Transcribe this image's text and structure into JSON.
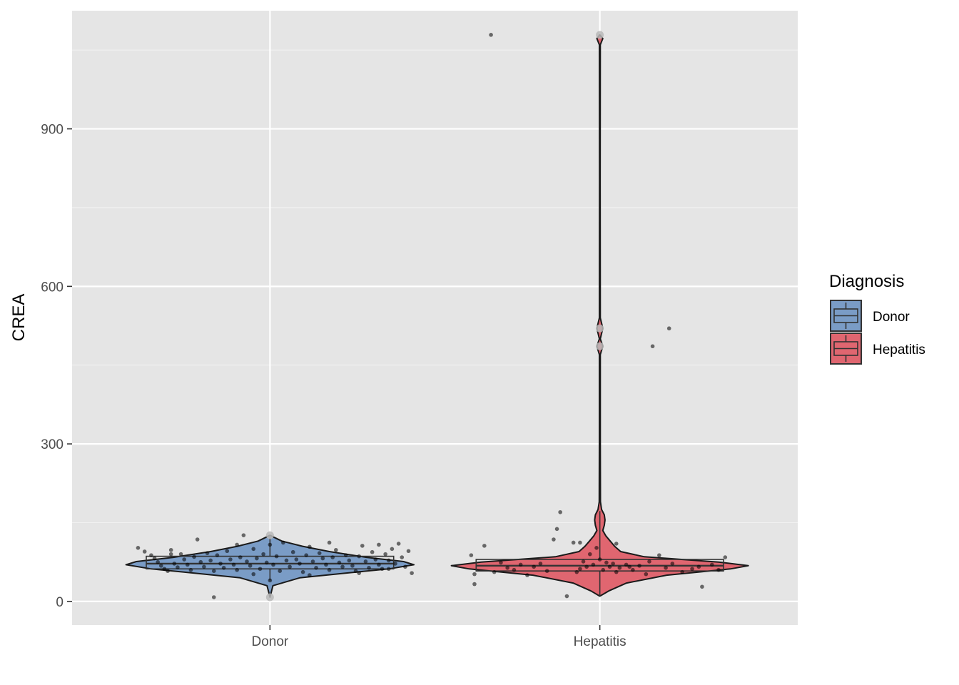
{
  "chart_data": {
    "type": "violin",
    "title": "",
    "xlabel": "",
    "ylabel": "CREA",
    "categories": [
      "Donor",
      "Hepatitis"
    ],
    "ylim": [
      -45,
      1125
    ],
    "yticks": [
      0,
      300,
      600,
      900
    ],
    "grid": true,
    "legend": {
      "title": "Diagnosis",
      "placement": "right",
      "items": [
        {
          "label": "Donor",
          "color": "#7a9cc6"
        },
        {
          "label": "Hepatitis",
          "color": "#e06670"
        }
      ]
    },
    "series": [
      {
        "category": "Donor",
        "color": "#7a9cc6",
        "box": {
          "min": 40,
          "q1": 62,
          "median": 72,
          "q3": 86,
          "max": 122
        },
        "outliers": [
          8,
          126
        ],
        "density": [
          [
            8,
            0.0
          ],
          [
            30,
            0.02
          ],
          [
            45,
            0.2
          ],
          [
            55,
            0.55
          ],
          [
            62,
            0.8
          ],
          [
            70,
            0.97
          ],
          [
            76,
            0.9
          ],
          [
            84,
            0.65
          ],
          [
            95,
            0.4
          ],
          [
            105,
            0.22
          ],
          [
            115,
            0.08
          ],
          [
            126,
            0.0
          ]
        ],
        "points": [
          [
            -0.4,
            102
          ],
          [
            -0.38,
            95
          ],
          [
            -0.36,
            88
          ],
          [
            -0.35,
            82
          ],
          [
            -0.34,
            75
          ],
          [
            -0.33,
            68
          ],
          [
            -0.32,
            62
          ],
          [
            -0.31,
            58
          ],
          [
            -0.3,
            98
          ],
          [
            -0.29,
            72
          ],
          [
            -0.28,
            65
          ],
          [
            -0.27,
            90
          ],
          [
            -0.26,
            80
          ],
          [
            -0.25,
            70
          ],
          [
            -0.24,
            60
          ],
          [
            -0.23,
            85
          ],
          [
            -0.22,
            118
          ],
          [
            -0.21,
            75
          ],
          [
            -0.2,
            66
          ],
          [
            -0.19,
            92
          ],
          [
            -0.18,
            78
          ],
          [
            -0.17,
            58
          ],
          [
            -0.16,
            88
          ],
          [
            -0.15,
            72
          ],
          [
            -0.14,
            64
          ],
          [
            -0.13,
            96
          ],
          [
            -0.12,
            80
          ],
          [
            -0.11,
            70
          ],
          [
            -0.1,
            60
          ],
          [
            -0.09,
            84
          ],
          [
            -0.08,
            126
          ],
          [
            -0.07,
            76
          ],
          [
            -0.06,
            68
          ],
          [
            -0.05,
            100
          ],
          [
            -0.04,
            82
          ],
          [
            -0.03,
            62
          ],
          [
            -0.02,
            90
          ],
          [
            -0.01,
            74
          ],
          [
            0.0,
            108
          ],
          [
            0.01,
            70
          ],
          [
            0.02,
            86
          ],
          [
            0.03,
            58
          ],
          [
            0.04,
            112
          ],
          [
            0.05,
            78
          ],
          [
            0.06,
            66
          ],
          [
            0.07,
            94
          ],
          [
            0.08,
            80
          ],
          [
            0.09,
            72
          ],
          [
            0.1,
            56
          ],
          [
            0.11,
            88
          ],
          [
            0.12,
            104
          ],
          [
            0.13,
            76
          ],
          [
            0.14,
            64
          ],
          [
            0.15,
            92
          ],
          [
            0.16,
            82
          ],
          [
            0.17,
            70
          ],
          [
            0.18,
            60
          ],
          [
            0.19,
            84
          ],
          [
            0.2,
            98
          ],
          [
            0.21,
            74
          ],
          [
            0.22,
            66
          ],
          [
            0.23,
            88
          ],
          [
            0.24,
            78
          ],
          [
            0.25,
            68
          ],
          [
            0.26,
            58
          ],
          [
            0.27,
            86
          ],
          [
            0.28,
            106
          ],
          [
            0.29,
            76
          ],
          [
            0.3,
            64
          ],
          [
            0.31,
            94
          ],
          [
            0.32,
            80
          ],
          [
            0.33,
            70
          ],
          [
            0.34,
            62
          ],
          [
            0.35,
            90
          ],
          [
            0.36,
            78
          ],
          [
            0.37,
            100
          ],
          [
            0.38,
            72
          ],
          [
            0.39,
            110
          ],
          [
            0.4,
            84
          ],
          [
            0.41,
            66
          ],
          [
            0.42,
            96
          ],
          [
            0.43,
            54
          ],
          [
            -0.17,
            8
          ],
          [
            0.0,
            40
          ],
          [
            -0.05,
            52
          ],
          [
            0.12,
            50
          ],
          [
            0.27,
            54
          ],
          [
            -0.1,
            108
          ],
          [
            0.18,
            112
          ],
          [
            -0.3,
            90
          ],
          [
            0.33,
            108
          ],
          [
            0.36,
            62
          ]
        ]
      },
      {
        "category": "Hepatitis",
        "color": "#e06670",
        "box": {
          "min": 10,
          "q1": 58,
          "median": 68,
          "q3": 80,
          "max": 172
        },
        "outliers": [
          486,
          520,
          1079
        ],
        "density": [
          [
            10,
            0.0
          ],
          [
            20,
            0.06
          ],
          [
            35,
            0.18
          ],
          [
            50,
            0.45
          ],
          [
            62,
            0.88
          ],
          [
            68,
            1.0
          ],
          [
            75,
            0.8
          ],
          [
            85,
            0.3
          ],
          [
            95,
            0.14
          ],
          [
            105,
            0.1
          ],
          [
            115,
            0.07
          ],
          [
            125,
            0.04
          ],
          [
            135,
            0.02
          ],
          [
            145,
            0.03
          ],
          [
            155,
            0.035
          ],
          [
            165,
            0.03
          ],
          [
            175,
            0.012
          ],
          [
            190,
            0.004
          ],
          [
            300,
            0.003
          ],
          [
            470,
            0.003
          ],
          [
            486,
            0.02
          ],
          [
            500,
            0.003
          ],
          [
            520,
            0.02
          ],
          [
            540,
            0.003
          ],
          [
            800,
            0.002
          ],
          [
            1060,
            0.003
          ],
          [
            1072,
            0.02
          ],
          [
            1079,
            0.0
          ]
        ],
        "points": [
          [
            -0.39,
            88
          ],
          [
            -0.38,
            52
          ],
          [
            -0.38,
            33
          ],
          [
            -0.35,
            106
          ],
          [
            -0.32,
            56
          ],
          [
            -0.3,
            74
          ],
          [
            -0.28,
            64
          ],
          [
            -0.26,
            60
          ],
          [
            -0.24,
            70
          ],
          [
            -0.22,
            50
          ],
          [
            -0.2,
            66
          ],
          [
            -0.18,
            72
          ],
          [
            -0.16,
            58
          ],
          [
            -0.14,
            118
          ],
          [
            -0.13,
            138
          ],
          [
            -0.12,
            170
          ],
          [
            -0.1,
            10
          ],
          [
            -0.08,
            112
          ],
          [
            -0.06,
            62
          ],
          [
            -0.05,
            76
          ],
          [
            -0.04,
            66
          ],
          [
            -0.03,
            90
          ],
          [
            -0.02,
            70
          ],
          [
            0.0,
            80
          ],
          [
            0.01,
            60
          ],
          [
            0.02,
            74
          ],
          [
            0.03,
            66
          ],
          [
            0.04,
            72
          ],
          [
            0.05,
            56
          ],
          [
            0.06,
            64
          ],
          [
            0.08,
            70
          ],
          [
            0.1,
            60
          ],
          [
            0.12,
            68
          ],
          [
            0.14,
            52
          ],
          [
            0.15,
            76
          ],
          [
            0.16,
            486
          ],
          [
            0.18,
            88
          ],
          [
            0.2,
            64
          ],
          [
            0.21,
            520
          ],
          [
            0.22,
            72
          ],
          [
            0.25,
            56
          ],
          [
            0.28,
            62
          ],
          [
            0.3,
            66
          ],
          [
            0.31,
            28
          ],
          [
            0.34,
            70
          ],
          [
            0.36,
            60
          ],
          [
            0.38,
            84
          ],
          [
            -0.06,
            112
          ],
          [
            0.05,
            110
          ],
          [
            -0.33,
            1079
          ],
          [
            -0.01,
            102
          ],
          [
            0.09,
            66
          ],
          [
            -0.07,
            56
          ]
        ]
      }
    ]
  }
}
